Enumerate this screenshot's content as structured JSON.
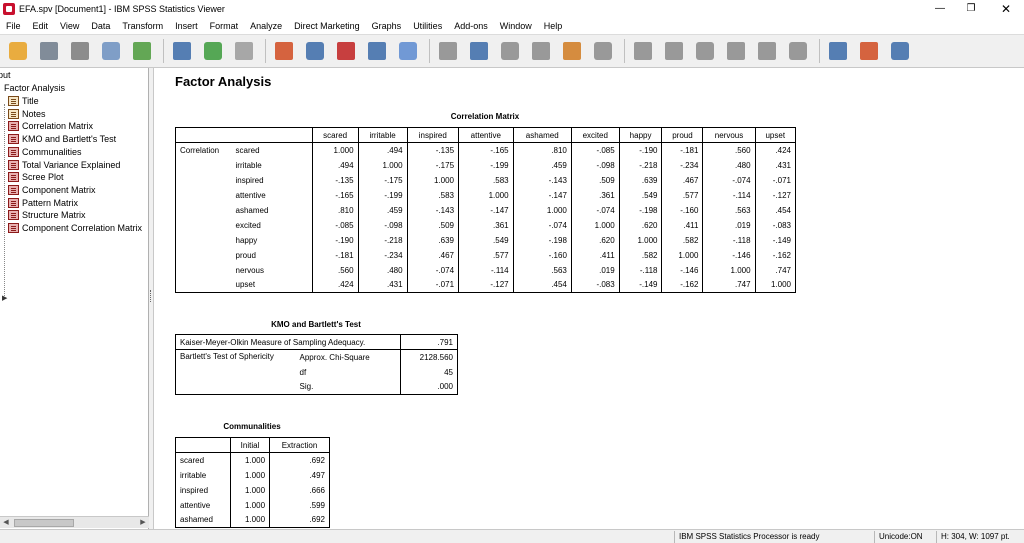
{
  "window": {
    "title": "EFA.spv [Document1] - IBM SPSS Statistics Viewer",
    "minimize_glyph": "—",
    "maximize_glyph": "❐",
    "close_glyph": "✕"
  },
  "menu": [
    "File",
    "Edit",
    "View",
    "Data",
    "Transform",
    "Insert",
    "Format",
    "Analyze",
    "Direct Marketing",
    "Graphs",
    "Utilities",
    "Add-ons",
    "Window",
    "Help"
  ],
  "toolbar": {
    "buttons": [
      {
        "name": "open-icon",
        "color": "#e8a020"
      },
      {
        "name": "save-icon",
        "color": "#6d7a8a"
      },
      {
        "name": "print-icon",
        "color": "#7a7a7a"
      },
      {
        "name": "print-preview-icon",
        "color": "#6b8fbf"
      },
      {
        "name": "export-icon",
        "color": "#4a9a3a"
      },
      {
        "name": "recall-dialog-icon",
        "color": "#3a6aa8"
      },
      {
        "name": "undo-icon",
        "color": "#3a9a3a"
      },
      {
        "name": "redo-icon",
        "color": "#9a9a9a"
      },
      {
        "name": "goto-data-icon",
        "color": "#d04a20"
      },
      {
        "name": "goto-case-icon",
        "color": "#3a6aa8"
      },
      {
        "name": "goto-variable-icon",
        "color": "#c02020"
      },
      {
        "name": "variables-icon",
        "color": "#3a6aa8"
      },
      {
        "name": "use-sets-icon",
        "color": "#5a8ad0"
      },
      {
        "name": "show-all-icon",
        "color": "#8a8a8a"
      },
      {
        "name": "insert-heading-icon",
        "color": "#3a6aa8"
      },
      {
        "name": "insert-title-icon",
        "color": "#8a8a8a"
      },
      {
        "name": "insert-text-icon",
        "color": "#8a8a8a"
      },
      {
        "name": "insert-note-icon",
        "color": "#d07a20"
      },
      {
        "name": "insert-image-icon",
        "color": "#8a8a8a"
      },
      {
        "name": "previous-icon",
        "color": "#8a8a8a"
      },
      {
        "name": "next-icon",
        "color": "#8a8a8a"
      },
      {
        "name": "expand-icon",
        "color": "#8a8a8a"
      },
      {
        "name": "collapse-icon",
        "color": "#8a8a8a"
      },
      {
        "name": "show-icon",
        "color": "#8a8a8a"
      },
      {
        "name": "hide-icon",
        "color": "#8a8a8a"
      },
      {
        "name": "designate-window-icon",
        "color": "#3a6aa8"
      },
      {
        "name": "create-chart-icon",
        "color": "#d04a20"
      },
      {
        "name": "select-last-output-icon",
        "color": "#3a6aa8"
      }
    ]
  },
  "outline": {
    "root_label": "put",
    "group_label": "Factor Analysis",
    "items": [
      "Title",
      "Notes",
      "Correlation Matrix",
      "KMO and Bartlett's Test",
      "Communalities",
      "Total Variance Explained",
      "Scree Plot",
      "Component Matrix",
      "Pattern Matrix",
      "Structure Matrix",
      "Component Correlation Matrix"
    ],
    "selected_arrow": "▶"
  },
  "scroll": {
    "left_arrow": "◀",
    "right_arrow": "▶"
  },
  "content": {
    "heading": "Factor Analysis",
    "correlation": {
      "title": "Correlation Matrix",
      "row_group": "Correlation",
      "variables": [
        "scared",
        "irritable",
        "inspired",
        "attentive",
        "ashamed",
        "excited",
        "happy",
        "proud",
        "nervous",
        "upset"
      ],
      "rows": [
        [
          "1.000",
          ".494",
          "-.135",
          "-.165",
          ".810",
          "-.085",
          "-.190",
          "-.181",
          ".560",
          ".424"
        ],
        [
          ".494",
          "1.000",
          "-.175",
          "-.199",
          ".459",
          "-.098",
          "-.218",
          "-.234",
          ".480",
          ".431"
        ],
        [
          "-.135",
          "-.175",
          "1.000",
          ".583",
          "-.143",
          ".509",
          ".639",
          ".467",
          "-.074",
          "-.071"
        ],
        [
          "-.165",
          "-.199",
          ".583",
          "1.000",
          "-.147",
          ".361",
          ".549",
          ".577",
          "-.114",
          "-.127"
        ],
        [
          ".810",
          ".459",
          "-.143",
          "-.147",
          "1.000",
          "-.074",
          "-.198",
          "-.160",
          ".563",
          ".454"
        ],
        [
          "-.085",
          "-.098",
          ".509",
          ".361",
          "-.074",
          "1.000",
          ".620",
          ".411",
          ".019",
          "-.083"
        ],
        [
          "-.190",
          "-.218",
          ".639",
          ".549",
          "-.198",
          ".620",
          "1.000",
          ".582",
          "-.118",
          "-.149"
        ],
        [
          "-.181",
          "-.234",
          ".467",
          ".577",
          "-.160",
          ".411",
          ".582",
          "1.000",
          "-.146",
          "-.162"
        ],
        [
          ".560",
          ".480",
          "-.074",
          "-.114",
          ".563",
          ".019",
          "-.118",
          "-.146",
          "1.000",
          ".747"
        ],
        [
          ".424",
          ".431",
          "-.071",
          "-.127",
          ".454",
          "-.083",
          "-.149",
          "-.162",
          ".747",
          "1.000"
        ]
      ]
    },
    "kmo": {
      "title": "KMO and Bartlett's Test",
      "kmo_label": "Kaiser-Meyer-Olkin Measure of Sampling Adequacy.",
      "kmo_value": ".791",
      "bartlett_label": "Bartlett's Test of Sphericity",
      "chi_label": "Approx. Chi-Square",
      "chi_value": "2128.560",
      "df_label": "df",
      "df_value": "45",
      "sig_label": "Sig.",
      "sig_value": ".000"
    },
    "communalities": {
      "title": "Communalities",
      "headers": [
        "Initial",
        "Extraction"
      ],
      "rows": [
        {
          "name": "scared",
          "initial": "1.000",
          "extraction": ".692"
        },
        {
          "name": "irritable",
          "initial": "1.000",
          "extraction": ".497"
        },
        {
          "name": "inspired",
          "initial": "1.000",
          "extraction": ".666"
        },
        {
          "name": "attentive",
          "initial": "1.000",
          "extraction": ".599"
        },
        {
          "name": "ashamed",
          "initial": "1.000",
          "extraction": ".692"
        }
      ]
    }
  },
  "status": {
    "processor": "IBM SPSS Statistics Processor is ready",
    "unicode": "Unicode:ON",
    "size": "H: 304, W: 1097 pt."
  }
}
